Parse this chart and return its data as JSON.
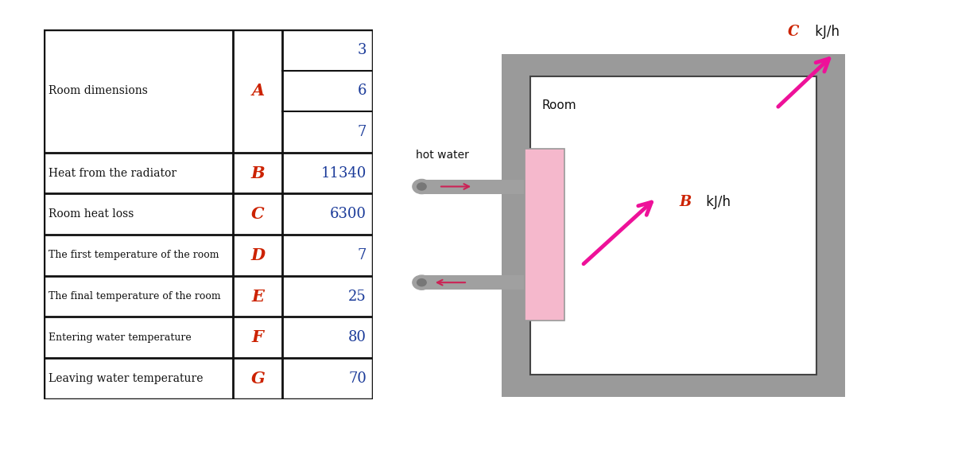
{
  "table_rows": [
    {
      "label": "Room dimensions",
      "var": "A",
      "value": [
        "3",
        "6",
        "7"
      ],
      "multi": true
    },
    {
      "label": "Heat from the radiator",
      "var": "B",
      "value": "11340",
      "multi": false
    },
    {
      "label": "Room heat loss",
      "var": "C",
      "value": "6300",
      "multi": false
    },
    {
      "label": "The first temperature of the room",
      "var": "D",
      "value": "7",
      "multi": false
    },
    {
      "label": "The final temperature of the room",
      "var": "E",
      "value": "25",
      "multi": false
    },
    {
      "label": "Entering water temperature",
      "var": "F",
      "value": "80",
      "multi": false
    },
    {
      "label": "Leaving water temperature",
      "var": "G",
      "value": "70",
      "multi": false
    }
  ],
  "var_color": "#cc2200",
  "value_color": "#1a3a99",
  "label_color": "#111111",
  "table_bg": "#ffffff",
  "border_color": "#111111",
  "diagram": {
    "room_label": "Room",
    "hot_water_label": "hot water",
    "b_label": " kJ/h",
    "c_label": " kJ/h",
    "room_wall_color": "#9a9a9a",
    "room_inner_color": "#ffffff",
    "radiator_color": "#f5b8cc",
    "pipe_color": "#a0a0a0",
    "arrow_color": "#ee1199",
    "arrow_small_color": "#cc2255"
  }
}
